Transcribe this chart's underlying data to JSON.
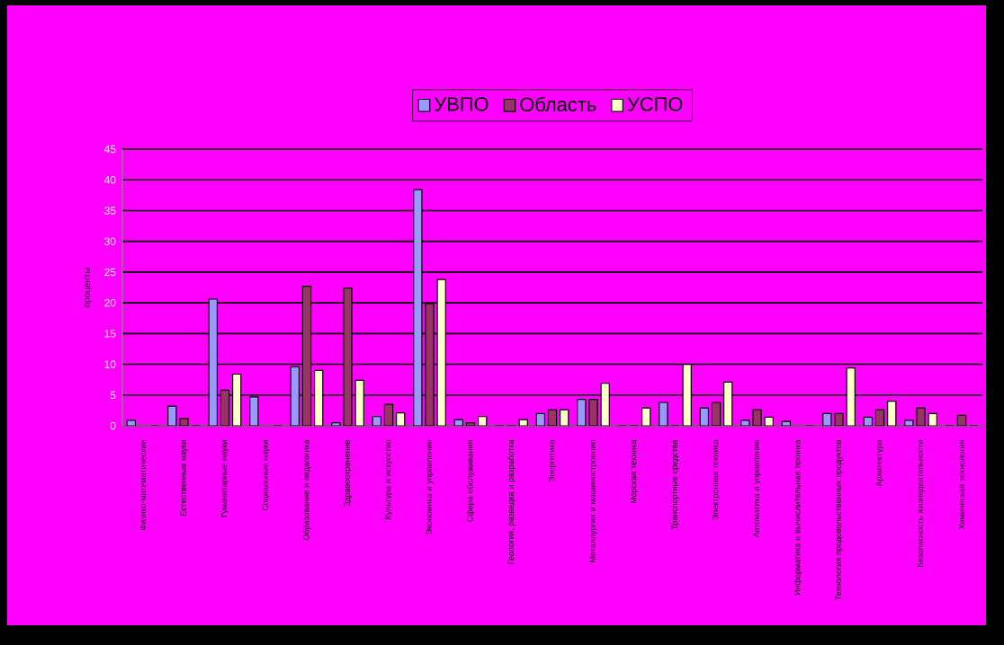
{
  "chart_data": {
    "type": "bar",
    "ylabel": "проценты",
    "categories": [
      "Физико-математические",
      "Естественные науки",
      "Гуманитарные науки",
      "Социальные науки",
      "Образование и педагогика",
      "Здравоохранение",
      "Культура и искусство",
      "Экономика и управление",
      "Сфера обслуживания",
      "Геология, разведка и разработка",
      "Энергетика",
      "Металлургия и машиностроение",
      "Морская техника",
      "Транспортные средства",
      "Электронная техника",
      "Автоматика и управление",
      "Информатика и вычислительная техника",
      "Технология продовольственных продуктов",
      "Архитектура",
      "Безопасность жизнедеятельности",
      "Химическая технология"
    ],
    "series": [
      {
        "name": "УВПО",
        "color": "#9999ff",
        "values": [
          0.9,
          3.2,
          20.6,
          4.7,
          9.6,
          0.5,
          1.5,
          38.4,
          1.0,
          0,
          2.0,
          4.3,
          0,
          3.8,
          2.9,
          0.9,
          0.7,
          2.0,
          1.4,
          0.9,
          0
        ]
      },
      {
        "name": "Область",
        "color": "#993366",
        "values": [
          null,
          1.2,
          5.8,
          null,
          22.7,
          22.4,
          3.5,
          19.9,
          0.5,
          0,
          2.6,
          4.3,
          0,
          0,
          3.8,
          2.6,
          null,
          2.0,
          2.6,
          2.9,
          1.7
        ]
      },
      {
        "name": "УСПО",
        "color": "#ffffcc",
        "values": [
          0,
          0,
          8.4,
          0,
          9.0,
          7.4,
          2.1,
          23.8,
          1.5,
          1.0,
          2.6,
          6.9,
          2.9,
          10.0,
          7.1,
          1.4,
          0,
          9.4,
          4.0,
          2.0,
          0
        ]
      }
    ],
    "ylim": [
      0,
      45
    ],
    "yticks": [
      0,
      5,
      10,
      15,
      20,
      25,
      30,
      35,
      40,
      45
    ],
    "grid": "y",
    "legend": "top"
  }
}
